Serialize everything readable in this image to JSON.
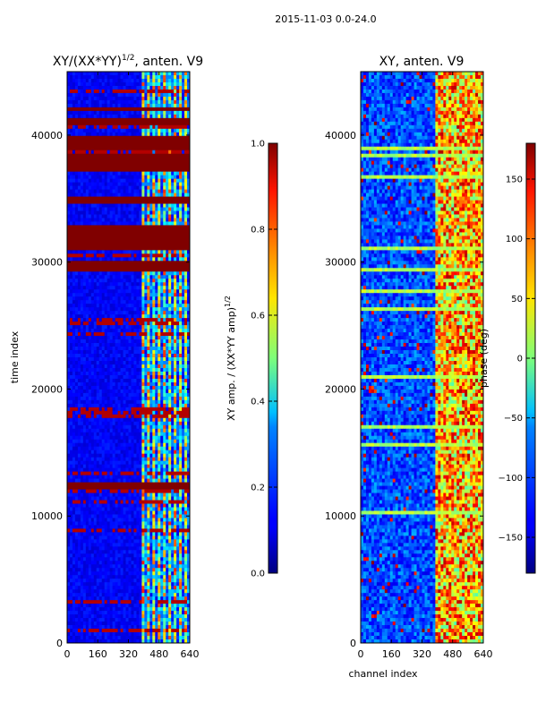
{
  "suptitle": "2015-11-03 0.0-24.0",
  "chart_data": [
    {
      "type": "heatmap",
      "title_main": "XY/(XX*YY)",
      "title_exp": "1/2",
      "title_suffix": ", anten. V9",
      "xlabel": "",
      "ylabel": "time index",
      "xlim": [
        0,
        640
      ],
      "ylim": [
        0,
        45000
      ],
      "xticks": [
        0,
        160,
        320,
        480,
        640
      ],
      "yticks": [
        0,
        10000,
        20000,
        30000,
        40000
      ],
      "colorbar": {
        "label_main": "XY amp. / (XX*YY amp)",
        "label_exp": "1/2",
        "range": [
          0.0,
          1.0
        ],
        "ticks": [
          "0.0",
          "0.2",
          "0.4",
          "0.6",
          "0.8",
          "1.0"
        ],
        "tick_values": [
          0,
          0.2,
          0.4,
          0.6,
          0.8,
          1.0
        ]
      },
      "saturated_time_bands": [
        [
          37000,
          38400
        ],
        [
          38900,
          40000
        ],
        [
          40800,
          41300
        ],
        [
          41800,
          42300
        ],
        [
          31000,
          33000
        ],
        [
          34600,
          35100
        ],
        [
          29300,
          30200
        ],
        [
          12000,
          12600
        ]
      ],
      "active_channel_range": [
        400,
        640
      ]
    },
    {
      "type": "heatmap",
      "title_main": "XY, anten. V9",
      "xlabel": "channel index",
      "ylabel": "",
      "xlim": [
        0,
        640
      ],
      "ylim": [
        0,
        45000
      ],
      "xticks": [
        0,
        160,
        320,
        480,
        640
      ],
      "yticks": [
        0,
        10000,
        20000,
        30000,
        40000
      ],
      "colorbar": {
        "label_main": "phase (deg)",
        "range": [
          -180,
          180
        ],
        "ticks": [
          "−150",
          "−100",
          "−50",
          "0",
          "50",
          "100",
          "150"
        ],
        "tick_values": [
          -150,
          -100,
          -50,
          0,
          50,
          100,
          150
        ]
      },
      "active_channel_range": [
        400,
        640
      ]
    }
  ]
}
